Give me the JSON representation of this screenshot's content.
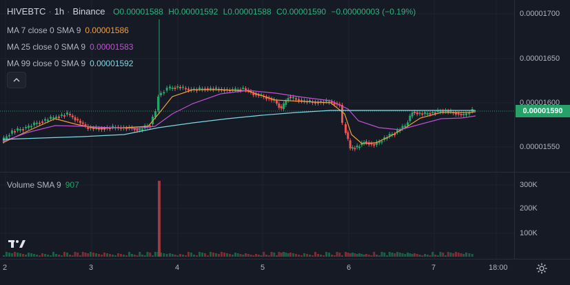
{
  "header": {
    "symbol": "HIVEBTC",
    "interval": "1h",
    "exchange": "Binance",
    "open": "O0.00001588",
    "high": "H0.00001592",
    "low": "L0.00001588",
    "close": "C0.00001590",
    "change": "−0.00000003 (−0.19%)"
  },
  "indicators": [
    {
      "label": "MA 7 close 0 SMA 9",
      "value": "0.00001586",
      "color": "#f0a03c"
    },
    {
      "label": "MA 25 close 0 SMA 9",
      "value": "0.00001583",
      "color": "#c24fd6"
    },
    {
      "label": "MA 99 close 0 SMA 9",
      "value": "0.00001592",
      "color": "#7fd9e6"
    }
  ],
  "collapse_icon": "chevron-up-icon",
  "price_axis": [
    "0.00001700",
    "0.00001650",
    "0.00001600",
    "0.00001550"
  ],
  "last_price": "0.00001590",
  "volume": {
    "label": "Volume SMA 9",
    "value": "907",
    "axis": [
      "300K",
      "200K",
      "100K"
    ]
  },
  "time_axis": [
    "2",
    "3",
    "4",
    "5",
    "6",
    "7",
    "18:00"
  ],
  "colors": {
    "up": "#26a269",
    "down": "#ef5350",
    "background": "#161a25"
  },
  "logo": "tradingview-logo",
  "settings_icon": "gear-icon"
}
